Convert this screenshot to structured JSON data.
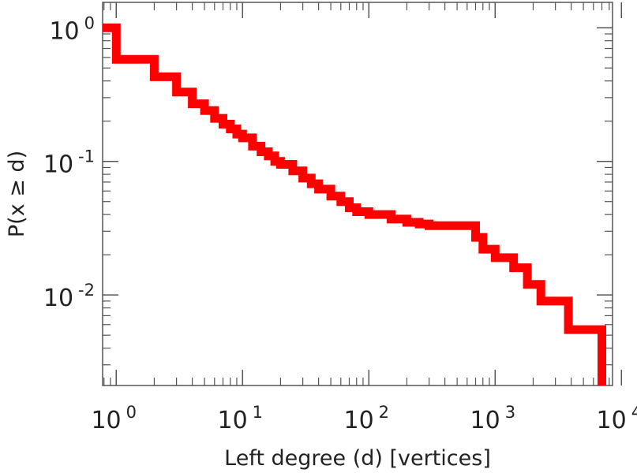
{
  "chart_data": {
    "type": "line",
    "xlabel": "Left degree (d) [vertices]",
    "ylabel": "P(x ≥ d)",
    "xscale": "log",
    "yscale": "log",
    "xlim": [
      0.78,
      8500
    ],
    "ylim": [
      0.0021,
      1.55
    ],
    "grid": false,
    "x_ticks": [
      {
        "base": "10",
        "exp": "0",
        "value": 1
      },
      {
        "base": "10",
        "exp": "1",
        "value": 10
      },
      {
        "base": "10",
        "exp": "2",
        "value": 100
      },
      {
        "base": "10",
        "exp": "3",
        "value": 1000
      },
      {
        "base": "10",
        "exp": "4",
        "value": 10000
      }
    ],
    "y_ticks": [
      {
        "base": "10",
        "exp": "0",
        "value": 1
      },
      {
        "base": "10",
        "exp": "-1",
        "value": 0.1
      },
      {
        "base": "10",
        "exp": "-2",
        "value": 0.01
      }
    ],
    "series": [
      {
        "color": "#ff0000",
        "step": true,
        "x": [
          0.78,
          1,
          2,
          3,
          4,
          5,
          6,
          7,
          8,
          9,
          10,
          12,
          14,
          16,
          18,
          20,
          25,
          30,
          35,
          40,
          50,
          60,
          70,
          80,
          100,
          150,
          200,
          250,
          300,
          400,
          500,
          600,
          700,
          800,
          1000,
          1400,
          1800,
          2300,
          3800,
          7000
        ],
        "y": [
          1.0,
          0.58,
          0.43,
          0.33,
          0.27,
          0.24,
          0.21,
          0.19,
          0.175,
          0.16,
          0.15,
          0.13,
          0.118,
          0.11,
          0.1,
          0.095,
          0.085,
          0.075,
          0.068,
          0.062,
          0.055,
          0.05,
          0.045,
          0.042,
          0.04,
          0.037,
          0.035,
          0.034,
          0.033,
          0.033,
          0.033,
          0.033,
          0.027,
          0.022,
          0.019,
          0.016,
          0.012,
          0.009,
          0.0055,
          0.0027
        ]
      }
    ]
  }
}
